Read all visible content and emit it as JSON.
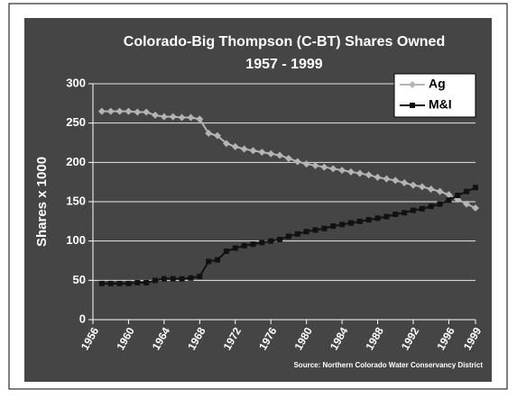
{
  "chart_data": {
    "type": "line",
    "title": "Colorado-Big Thompson (C-BT) Shares Owned",
    "subtitle": "1957 - 1999",
    "y_label": "Shares x 1000",
    "source": "Source:  Northern Colorado Water Conservancy District",
    "x": [
      1957,
      1958,
      1959,
      1960,
      1961,
      1962,
      1963,
      1964,
      1965,
      1966,
      1967,
      1968,
      1969,
      1970,
      1971,
      1972,
      1973,
      1974,
      1975,
      1976,
      1977,
      1978,
      1979,
      1980,
      1981,
      1982,
      1983,
      1984,
      1985,
      1986,
      1987,
      1988,
      1989,
      1990,
      1991,
      1992,
      1993,
      1994,
      1995,
      1996,
      1997,
      1998,
      1999
    ],
    "series": [
      {
        "name": "Ag",
        "color": "#b4b4b4",
        "marker": "diamond",
        "values": [
          265,
          265,
          265,
          265,
          264,
          264,
          260,
          258,
          258,
          257,
          257,
          255,
          237,
          234,
          224,
          220,
          217,
          215,
          213,
          211,
          209,
          205,
          201,
          198,
          196,
          194,
          192,
          190,
          188,
          186,
          184,
          181,
          179,
          177,
          174,
          171,
          169,
          166,
          163,
          159,
          153,
          147,
          142
        ]
      },
      {
        "name": "M&I",
        "color": "#111111",
        "marker": "square",
        "values": [
          46,
          46,
          46,
          46,
          47,
          47,
          50,
          52,
          52,
          52,
          53,
          55,
          74,
          76,
          87,
          91,
          94,
          96,
          98,
          100,
          102,
          106,
          109,
          112,
          114,
          116,
          119,
          121,
          123,
          125,
          127,
          129,
          131,
          134,
          136,
          139,
          141,
          144,
          147,
          152,
          158,
          163,
          168
        ]
      }
    ],
    "xlim": [
      1956,
      1999
    ],
    "xticks": [
      1956,
      1960,
      1964,
      1968,
      1972,
      1976,
      1980,
      1984,
      1988,
      1992,
      1996,
      1999
    ],
    "ylim": [
      0,
      300
    ],
    "yticks": [
      0,
      50,
      100,
      150,
      200,
      250,
      300
    ],
    "grid": true,
    "legend": "top-right"
  }
}
